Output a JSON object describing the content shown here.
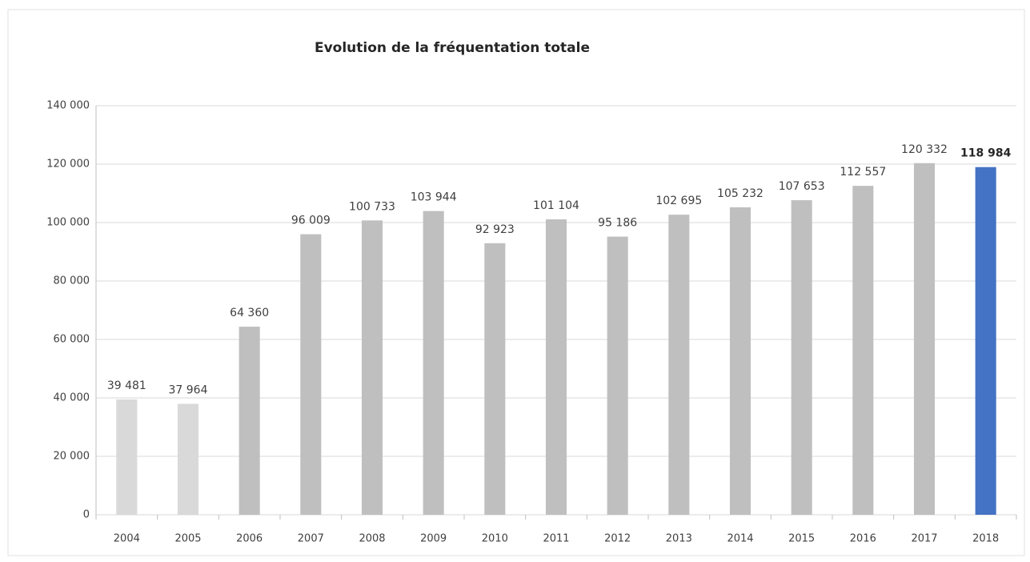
{
  "chart_data": {
    "type": "bar",
    "title": "Evolution de la fréquentation totale",
    "categories": [
      "2004",
      "2005",
      "2006",
      "2007",
      "2008",
      "2009",
      "2010",
      "2011",
      "2012",
      "2013",
      "2014",
      "2015",
      "2016",
      "2017",
      "2018"
    ],
    "values": [
      39481,
      37964,
      64360,
      96009,
      100733,
      103944,
      92923,
      101104,
      95186,
      102695,
      105232,
      107653,
      112557,
      120332,
      118984
    ],
    "value_labels": [
      "39 481",
      "37 964",
      "64 360",
      "96 009",
      "100 733",
      "103 944",
      "92 923",
      "101 104",
      "95 186",
      "102 695",
      "105 232",
      "107 653",
      "112 557",
      "120 332",
      "118 984"
    ],
    "colors": [
      "#d9d9d9",
      "#d9d9d9",
      "#bfbfbf",
      "#bfbfbf",
      "#bfbfbf",
      "#bfbfbf",
      "#bfbfbf",
      "#bfbfbf",
      "#bfbfbf",
      "#bfbfbf",
      "#bfbfbf",
      "#bfbfbf",
      "#bfbfbf",
      "#bfbfbf",
      "#4472c4"
    ],
    "ylim": [
      0,
      140000
    ],
    "yticks": [
      0,
      {
        "value": 20000,
        "label": "20 000"
      },
      {
        "value": 40000,
        "label": "40 000"
      },
      {
        "value": 60000,
        "label": "60 000"
      },
      {
        "value": 80000,
        "label": "80 000"
      },
      {
        "value": 100000,
        "label": "100 000"
      },
      {
        "value": 120000,
        "label": "120 000"
      },
      {
        "value": 140000,
        "label": "140 000"
      }
    ],
    "grid": true
  }
}
